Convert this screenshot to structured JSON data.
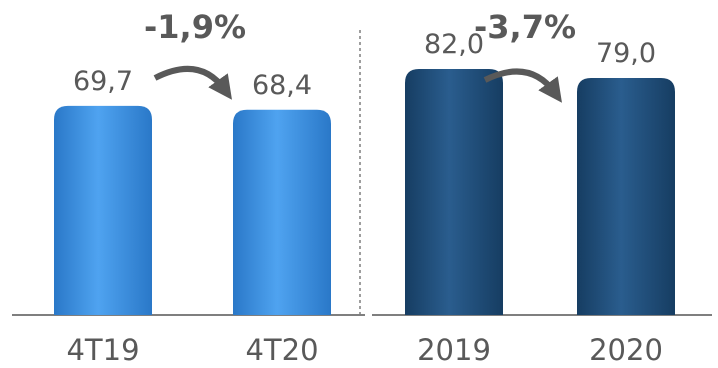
{
  "chart_data": [
    {
      "type": "bar",
      "categories": [
        "4T19",
        "4T20"
      ],
      "values": [
        69.7,
        68.4
      ],
      "value_labels": [
        "69,7",
        "68,4"
      ],
      "variation_label": "-1,9%",
      "color": "#3B8FE0",
      "ylim": [
        0,
        90
      ]
    },
    {
      "type": "bar",
      "categories": [
        "2019",
        "2020"
      ],
      "values": [
        82.0,
        79.0
      ],
      "value_labels": [
        "82,0",
        "79,0"
      ],
      "variation_label": "-3,7%",
      "color": "#1F4E79",
      "ylim": [
        0,
        90
      ]
    }
  ],
  "colors": {
    "light_bar": "#3B8FE0",
    "dark_bar": "#1F4E79",
    "arrow": "#595959",
    "text": "#595959"
  }
}
